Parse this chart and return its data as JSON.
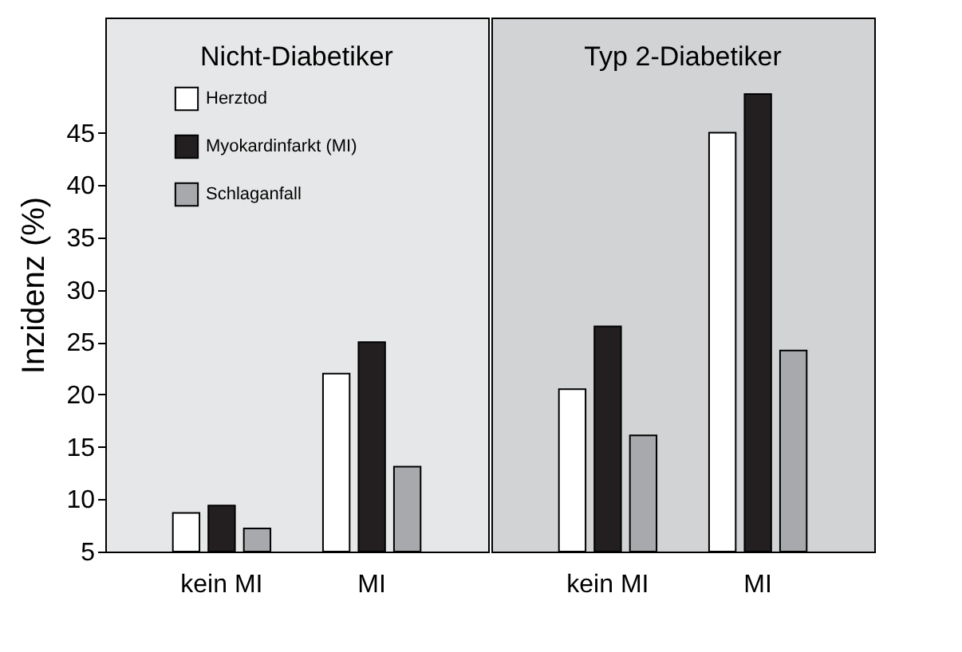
{
  "chart_data": [
    {
      "type": "bar",
      "title": "Nicht-Diabetiker",
      "ylabel": "Inzidenz (%)",
      "categories": [
        "kein MI",
        "MI"
      ],
      "ylim": [
        5,
        56
      ],
      "yticks": [
        5,
        10,
        15,
        20,
        25,
        30,
        35,
        40,
        45
      ],
      "grid": false,
      "legend": "top left",
      "series": [
        {
          "name": "Herztod",
          "color": "#ffffff",
          "values": [
            8.7,
            22.0
          ]
        },
        {
          "name": "Myokardinfarkt (MI)",
          "color": "#231f20",
          "values": [
            9.4,
            25.0
          ]
        },
        {
          "name": "Schlaganfall",
          "color": "#a7a9ac",
          "values": [
            7.2,
            13.1
          ]
        }
      ]
    },
    {
      "type": "bar",
      "title": "Typ 2-Diabetiker",
      "categories": [
        "kein MI",
        "MI"
      ],
      "ylim": [
        5,
        56
      ],
      "yticks": [
        5,
        10,
        15,
        20,
        25,
        30,
        35,
        40,
        45
      ],
      "grid": false,
      "legend": false,
      "tick_labels": "x",
      "series": [
        {
          "color": "#ffffff",
          "values": [
            20.5,
            45.0
          ]
        },
        {
          "color": "#231f20",
          "values": [
            26.5,
            48.7
          ]
        },
        {
          "color": "#a7a9ac",
          "values": [
            16.1,
            24.2
          ]
        }
      ]
    }
  ]
}
